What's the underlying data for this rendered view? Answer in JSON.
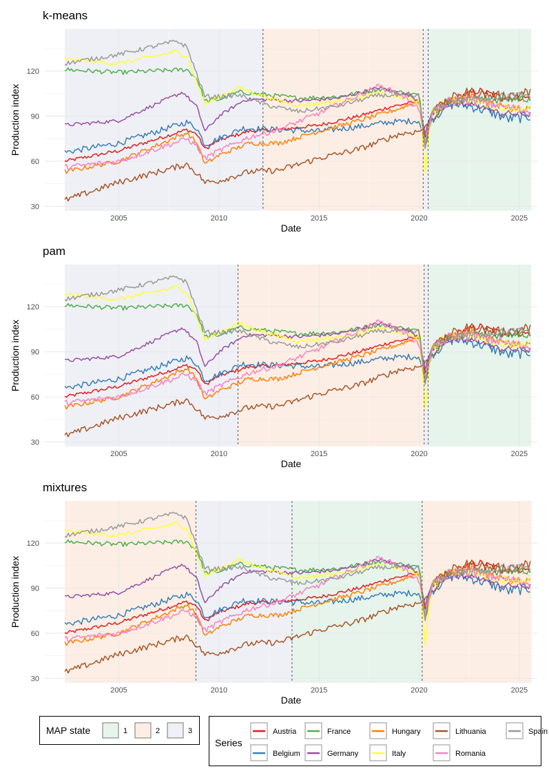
{
  "colors": {
    "state_1": "#e7f4ec",
    "state_2": "#fdeee5",
    "state_3": "#eff0f6",
    "Austria": "#e41a1c",
    "Belgium": "#377eb8",
    "France": "#4daf4a",
    "Germany": "#984ea3",
    "Hungary": "#ff7f00",
    "Italy": "#ffff33",
    "Lithuania": "#a65628",
    "Romania": "#f781bf",
    "Spain": "#999999"
  },
  "legend": {
    "map_state_title": "MAP state",
    "states": [
      "1",
      "2",
      "3"
    ],
    "series_title": "Series",
    "series": [
      "Austria",
      "Belgium",
      "France",
      "Germany",
      "Hungary",
      "Italy",
      "Lithuania",
      "Romania",
      "Spain"
    ]
  },
  "chart_data": [
    {
      "type": "line",
      "title": "k-means",
      "xlabel": "Date",
      "ylabel": "Production index",
      "xlim": [
        2001.3,
        2025.9
      ],
      "ylim": [
        27,
        148
      ],
      "xticks": [
        2005,
        2010,
        2015,
        2020,
        2025
      ],
      "yticks": [
        30,
        60,
        90,
        120
      ],
      "regimes": [
        {
          "state": "3",
          "start": 2002.3,
          "end": 2012.2
        },
        {
          "state": "2",
          "start": 2012.2,
          "end": 2020.2
        },
        {
          "state": "3",
          "start": 2020.2,
          "end": 2020.45
        },
        {
          "state": "1",
          "start": 2020.45,
          "end": 2025.6
        }
      ],
      "breaks": [
        2012.2,
        2020.2,
        2020.45
      ]
    },
    {
      "type": "line",
      "title": "pam",
      "xlabel": "Date",
      "ylabel": "Production index",
      "xlim": [
        2001.3,
        2025.9
      ],
      "ylim": [
        27,
        148
      ],
      "xticks": [
        2005,
        2010,
        2015,
        2020,
        2025
      ],
      "yticks": [
        30,
        60,
        90,
        120
      ],
      "regimes": [
        {
          "state": "3",
          "start": 2002.3,
          "end": 2010.95
        },
        {
          "state": "2",
          "start": 2010.95,
          "end": 2020.25
        },
        {
          "state": "3",
          "start": 2020.25,
          "end": 2020.45
        },
        {
          "state": "1",
          "start": 2020.45,
          "end": 2025.6
        }
      ],
      "breaks": [
        2010.95,
        2020.25,
        2020.45
      ]
    },
    {
      "type": "line",
      "title": "mixtures",
      "xlabel": "Date",
      "ylabel": "Production index",
      "xlim": [
        2001.3,
        2025.9
      ],
      "ylim": [
        27,
        148
      ],
      "xticks": [
        2005,
        2010,
        2015,
        2020,
        2025
      ],
      "yticks": [
        30,
        60,
        90,
        120
      ],
      "regimes": [
        {
          "state": "2",
          "start": 2002.3,
          "end": 2008.85
        },
        {
          "state": "3",
          "start": 2008.85,
          "end": 2013.65
        },
        {
          "state": "1",
          "start": 2013.65,
          "end": 2020.15
        },
        {
          "state": "2",
          "start": 2020.15,
          "end": 2025.6
        }
      ],
      "breaks": [
        2008.85,
        2013.65,
        2020.15
      ]
    }
  ],
  "series_data": {
    "x_start": 2002.3,
    "x_end": 2025.6,
    "series": [
      {
        "name": "Austria",
        "anchors": [
          [
            2002.3,
            60
          ],
          [
            2005,
            67
          ],
          [
            2008.4,
            81
          ],
          [
            2008.9,
            78
          ],
          [
            2009.3,
            68
          ],
          [
            2010,
            74
          ],
          [
            2011.5,
            80
          ],
          [
            2013,
            81
          ],
          [
            2015,
            84
          ],
          [
            2017,
            90
          ],
          [
            2018.5,
            96
          ],
          [
            2020.0,
            100
          ],
          [
            2020.3,
            75
          ],
          [
            2020.6,
            92
          ],
          [
            2021,
            97
          ],
          [
            2022,
            103
          ],
          [
            2023,
            107
          ],
          [
            2024,
            103
          ],
          [
            2025.6,
            102
          ]
        ],
        "noise": 1.2
      },
      {
        "name": "Belgium",
        "anchors": [
          [
            2002.3,
            66
          ],
          [
            2005,
            72
          ],
          [
            2008.4,
            86
          ],
          [
            2008.9,
            82
          ],
          [
            2009.3,
            71
          ],
          [
            2010,
            75
          ],
          [
            2011.2,
            82
          ],
          [
            2013,
            81
          ],
          [
            2015,
            80
          ],
          [
            2017,
            83
          ],
          [
            2018.5,
            86
          ],
          [
            2020.0,
            87
          ],
          [
            2020.3,
            70
          ],
          [
            2020.6,
            88
          ],
          [
            2021.5,
            98
          ],
          [
            2022.5,
            97
          ],
          [
            2023.5,
            93
          ],
          [
            2024.5,
            88
          ],
          [
            2025.6,
            90
          ]
        ],
        "noise": 2.0
      },
      {
        "name": "France",
        "anchors": [
          [
            2002.3,
            121
          ],
          [
            2005,
            119
          ],
          [
            2008.4,
            121
          ],
          [
            2008.9,
            115
          ],
          [
            2009.3,
            100
          ],
          [
            2010,
            101
          ],
          [
            2011,
            106
          ],
          [
            2012.5,
            104
          ],
          [
            2014,
            102
          ],
          [
            2016,
            103
          ],
          [
            2018,
            108
          ],
          [
            2020.0,
            104
          ],
          [
            2020.3,
            72
          ],
          [
            2020.6,
            92
          ],
          [
            2021.5,
            100
          ],
          [
            2023,
            101
          ],
          [
            2024.5,
            101
          ],
          [
            2025.6,
            102
          ]
        ],
        "noise": 1.5
      },
      {
        "name": "Germany",
        "anchors": [
          [
            2002.3,
            84
          ],
          [
            2005,
            87
          ],
          [
            2008.2,
            106
          ],
          [
            2008.9,
            96
          ],
          [
            2009.3,
            80
          ],
          [
            2010,
            90
          ],
          [
            2011.3,
            101
          ],
          [
            2012.5,
            101
          ],
          [
            2014,
            100
          ],
          [
            2016,
            102
          ],
          [
            2018,
            109
          ],
          [
            2019.5,
            104
          ],
          [
            2020.0,
            100
          ],
          [
            2020.3,
            78
          ],
          [
            2020.6,
            92
          ],
          [
            2021.5,
            98
          ],
          [
            2023,
            97
          ],
          [
            2024,
            92
          ],
          [
            2025.6,
            91
          ]
        ],
        "noise": 1.2
      },
      {
        "name": "Hungary",
        "anchors": [
          [
            2002.3,
            53
          ],
          [
            2005,
            60
          ],
          [
            2008.4,
            79
          ],
          [
            2008.9,
            72
          ],
          [
            2009.3,
            58
          ],
          [
            2010,
            64
          ],
          [
            2011.5,
            72
          ],
          [
            2013,
            72
          ],
          [
            2015,
            80
          ],
          [
            2017,
            87
          ],
          [
            2019,
            95
          ],
          [
            2020.0,
            100
          ],
          [
            2020.3,
            68
          ],
          [
            2020.6,
            92
          ],
          [
            2021.5,
            100
          ],
          [
            2022.5,
            104
          ],
          [
            2024,
            96
          ],
          [
            2025.6,
            94
          ]
        ],
        "noise": 1.5
      },
      {
        "name": "Italy",
        "anchors": [
          [
            2002.3,
            128
          ],
          [
            2005,
            125
          ],
          [
            2007.9,
            133
          ],
          [
            2008.4,
            130
          ],
          [
            2009.3,
            98
          ],
          [
            2010,
            103
          ],
          [
            2011,
            109
          ],
          [
            2012.5,
            102
          ],
          [
            2014,
            97
          ],
          [
            2016,
            100
          ],
          [
            2018,
            105
          ],
          [
            2020.0,
            100
          ],
          [
            2020.3,
            52
          ],
          [
            2020.6,
            92
          ],
          [
            2021.5,
            101
          ],
          [
            2022.5,
            101
          ],
          [
            2024,
            96
          ],
          [
            2025.6,
            95
          ]
        ],
        "noise": 1.5
      },
      {
        "name": "Lithuania",
        "anchors": [
          [
            2002.3,
            34
          ],
          [
            2005,
            46
          ],
          [
            2008.4,
            58
          ],
          [
            2008.9,
            52
          ],
          [
            2009.3,
            46
          ],
          [
            2010,
            47
          ],
          [
            2011.5,
            53
          ],
          [
            2013,
            54
          ],
          [
            2015,
            62
          ],
          [
            2017,
            68
          ],
          [
            2019,
            78
          ],
          [
            2020.0,
            80
          ],
          [
            2020.3,
            82
          ],
          [
            2020.6,
            88
          ],
          [
            2021.5,
            101
          ],
          [
            2022.5,
            106
          ],
          [
            2024,
            103
          ],
          [
            2025.6,
            106
          ]
        ],
        "noise": 2.0
      },
      {
        "name": "Romania",
        "anchors": [
          [
            2002.3,
            56
          ],
          [
            2005,
            60
          ],
          [
            2008.4,
            75
          ],
          [
            2008.9,
            70
          ],
          [
            2009.3,
            62
          ],
          [
            2010,
            67
          ],
          [
            2011.5,
            76
          ],
          [
            2013,
            81
          ],
          [
            2015,
            92
          ],
          [
            2017,
            104
          ],
          [
            2018,
            110
          ],
          [
            2019,
            105
          ],
          [
            2020.0,
            95
          ],
          [
            2020.3,
            72
          ],
          [
            2020.6,
            90
          ],
          [
            2021.5,
            100
          ],
          [
            2022.5,
            101
          ],
          [
            2024,
            97
          ],
          [
            2025.6,
            93
          ]
        ],
        "noise": 1.8
      },
      {
        "name": "Spain",
        "anchors": [
          [
            2002.3,
            125
          ],
          [
            2005,
            131
          ],
          [
            2007.9,
            140
          ],
          [
            2008.4,
            136
          ],
          [
            2009.3,
            103
          ],
          [
            2010,
            103
          ],
          [
            2011,
            104
          ],
          [
            2012.5,
            97
          ],
          [
            2014,
            93
          ],
          [
            2016,
            97
          ],
          [
            2018,
            104
          ],
          [
            2020.0,
            103
          ],
          [
            2020.3,
            70
          ],
          [
            2020.6,
            92
          ],
          [
            2021.5,
            100
          ],
          [
            2022.5,
            101
          ],
          [
            2024,
            103
          ],
          [
            2025.6,
            104
          ]
        ],
        "noise": 1.5
      }
    ]
  }
}
